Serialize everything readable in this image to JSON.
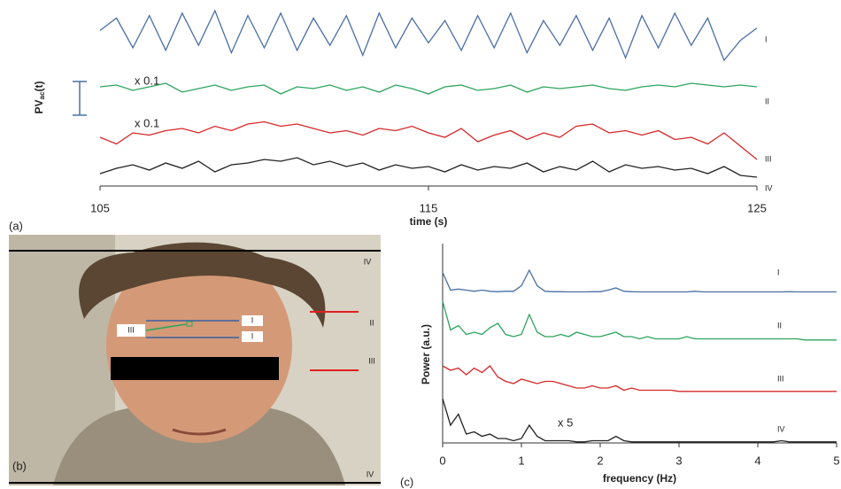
{
  "chart_data": [
    {
      "type": "line",
      "panel_label": "(a)",
      "xlabel": "time (s)",
      "ylabel": "PV",
      "ylabel_sub": "ac",
      "ylabel_suffix": "(t)",
      "annotations": [
        "x 0.1",
        "x 0.1"
      ],
      "xlim": [
        105,
        125
      ],
      "xticks": [
        105,
        115,
        125
      ],
      "x": [
        105,
        105.5,
        106,
        106.5,
        107,
        107.5,
        108,
        108.5,
        109,
        109.5,
        110,
        110.5,
        111,
        111.5,
        112,
        112.5,
        113,
        113.5,
        114,
        114.5,
        115,
        115.5,
        116,
        116.5,
        117,
        117.5,
        118,
        118.5,
        119,
        119.5,
        120,
        120.5,
        121,
        121.5,
        122,
        122.5,
        123,
        123.5,
        124,
        124.5,
        125
      ],
      "series": [
        {
          "name": "I",
          "color": "#4a6fa5",
          "values": [
            0.2,
            0.7,
            -0.5,
            0.8,
            -0.6,
            0.9,
            -0.4,
            1.0,
            -0.7,
            0.8,
            -0.5,
            0.9,
            -0.6,
            0.7,
            -0.4,
            0.8,
            -0.8,
            0.9,
            -0.5,
            0.7,
            -0.3,
            0.6,
            -0.6,
            0.8,
            -0.5,
            0.9,
            -0.7,
            0.6,
            -0.4,
            0.8,
            -0.6,
            0.7,
            -0.9,
            0.8,
            -0.5,
            0.9,
            -0.4,
            0.7,
            -1.0,
            -0.2,
            0.3
          ]
        },
        {
          "name": "II",
          "color": "#2ca45c",
          "values": [
            0.1,
            0.2,
            -0.1,
            0.1,
            0.3,
            -0.2,
            0.0,
            0.2,
            -0.1,
            0.1,
            0.2,
            -0.3,
            0.1,
            0.0,
            0.2,
            -0.1,
            0.1,
            -0.2,
            0.2,
            0.0,
            -0.3,
            0.1,
            0.2,
            -0.1,
            0.0,
            0.2,
            -0.2,
            0.1,
            0.0,
            0.1,
            0.2,
            0.0,
            -0.1,
            0.1,
            0.2,
            0.1,
            0.3,
            0.2,
            0.1,
            0.2,
            0.1
          ]
        },
        {
          "name": "III",
          "color": "#d62728",
          "values": [
            0.0,
            -0.3,
            0.2,
            0.1,
            0.3,
            0.4,
            0.2,
            0.5,
            0.3,
            0.6,
            0.7,
            0.5,
            0.6,
            0.4,
            0.2,
            0.3,
            0.1,
            0.4,
            0.3,
            0.5,
            0.2,
            0.0,
            0.4,
            -0.2,
            0.1,
            0.3,
            -0.1,
            0.2,
            0.0,
            0.5,
            0.6,
            0.2,
            0.3,
            0.1,
            0.3,
            -0.1,
            0.0,
            -0.3,
            0.2,
            -0.4,
            -1.0
          ]
        },
        {
          "name": "IV",
          "color": "#222222",
          "values": [
            -0.2,
            0.1,
            0.3,
            0.0,
            0.4,
            0.1,
            0.5,
            -0.1,
            0.3,
            0.4,
            0.6,
            0.5,
            0.7,
            0.3,
            0.5,
            0.2,
            0.4,
            0.0,
            0.3,
            0.1,
            0.2,
            -0.1,
            0.3,
            0.0,
            0.2,
            0.1,
            0.4,
            -0.1,
            0.2,
            0.0,
            0.5,
            -0.1,
            0.3,
            0.1,
            0.2,
            0.0,
            0.1,
            -0.2,
            0.2,
            -0.3,
            -0.4
          ]
        }
      ]
    },
    {
      "type": "line",
      "panel_label": "(c)",
      "xlabel": "frequency (Hz)",
      "ylabel": "Power (a.u.)",
      "annotations": [
        "x 5"
      ],
      "xlim": [
        0,
        5
      ],
      "xticks": [
        0,
        1,
        2,
        3,
        4,
        5
      ],
      "x": [
        0,
        0.1,
        0.2,
        0.3,
        0.4,
        0.5,
        0.6,
        0.7,
        0.8,
        0.9,
        1,
        1.1,
        1.2,
        1.3,
        1.4,
        1.5,
        1.6,
        1.7,
        1.8,
        1.9,
        2,
        2.1,
        2.2,
        2.3,
        2.4,
        2.5,
        2.6,
        2.7,
        2.8,
        2.9,
        3,
        3.1,
        3.2,
        3.3,
        3.4,
        3.5,
        3.6,
        3.7,
        3.8,
        3.9,
        4,
        4.1,
        4.2,
        4.3,
        4.4,
        4.5,
        4.6,
        4.7,
        4.8,
        4.9,
        5
      ],
      "series": [
        {
          "name": "I",
          "color": "#4a6fa5",
          "values": [
            0.9,
            0.1,
            0.15,
            0.1,
            0.05,
            0.1,
            0.05,
            0.03,
            0.05,
            0.05,
            0.3,
            1.0,
            0.3,
            0.05,
            0.03,
            0.03,
            0.02,
            0.02,
            0.02,
            0.03,
            0.03,
            0.1,
            0.2,
            0.05,
            0.03,
            0.02,
            0.02,
            0.02,
            0.02,
            0.02,
            0.02,
            0.02,
            0.05,
            0.02,
            0.02,
            0.02,
            0.02,
            0.02,
            0.02,
            0.02,
            0.02,
            0.02,
            0.02,
            0.02,
            0.03,
            0.02,
            0.02,
            0.02,
            0.02,
            0.02,
            0.02
          ]
        },
        {
          "name": "II",
          "color": "#2ca45c",
          "values": [
            1.8,
            0.5,
            0.7,
            0.3,
            0.4,
            0.3,
            0.6,
            0.8,
            0.3,
            0.2,
            0.3,
            1.2,
            0.4,
            0.2,
            0.2,
            0.3,
            0.2,
            0.4,
            0.3,
            0.2,
            0.2,
            0.3,
            0.4,
            0.2,
            0.2,
            0.1,
            0.2,
            0.1,
            0.1,
            0.1,
            0.1,
            0.2,
            0.1,
            0.1,
            0.1,
            0.1,
            0.1,
            0.1,
            0.1,
            0.1,
            0.1,
            0.1,
            0.1,
            0.1,
            0.1,
            0.1,
            0.05,
            0.05,
            0.05,
            0.05,
            0.05
          ]
        },
        {
          "name": "III",
          "color": "#d62728",
          "values": [
            1.2,
            1.0,
            1.1,
            0.8,
            1.1,
            0.9,
            1.2,
            0.7,
            0.5,
            0.4,
            0.6,
            0.5,
            0.4,
            0.5,
            0.5,
            0.4,
            0.3,
            0.2,
            0.2,
            0.3,
            0.2,
            0.2,
            0.3,
            0.1,
            0.2,
            0.1,
            0.1,
            0.1,
            0.1,
            0.1,
            0.05,
            0.05,
            0.05,
            0.05,
            0.05,
            0.05,
            0.05,
            0.05,
            0.05,
            0.05,
            0.05,
            0.05,
            0.05,
            0.05,
            0.05,
            0.05,
            0.05,
            0.05,
            0.05,
            0.05,
            0.05
          ]
        },
        {
          "name": "IV",
          "color": "#222222",
          "values": [
            2.0,
            0.8,
            1.3,
            0.4,
            0.5,
            0.3,
            0.4,
            0.2,
            0.2,
            0.1,
            0.2,
            0.8,
            0.3,
            0.1,
            0.1,
            0.1,
            0.1,
            0.05,
            0.05,
            0.1,
            0.1,
            0.1,
            0.3,
            0.1,
            0.05,
            0.05,
            0.05,
            0.05,
            0.05,
            0.05,
            0.05,
            0.05,
            0.05,
            0.05,
            0.05,
            0.05,
            0.05,
            0.05,
            0.05,
            0.05,
            0.05,
            0.05,
            0.05,
            0.1,
            0.05,
            0.05,
            0.05,
            0.05,
            0.05,
            0.05,
            0.05
          ]
        }
      ]
    }
  ],
  "photo": {
    "panel_label": "(b)",
    "marks": [
      "IV",
      "II",
      "III",
      "III",
      "I",
      "I",
      "IV"
    ]
  }
}
